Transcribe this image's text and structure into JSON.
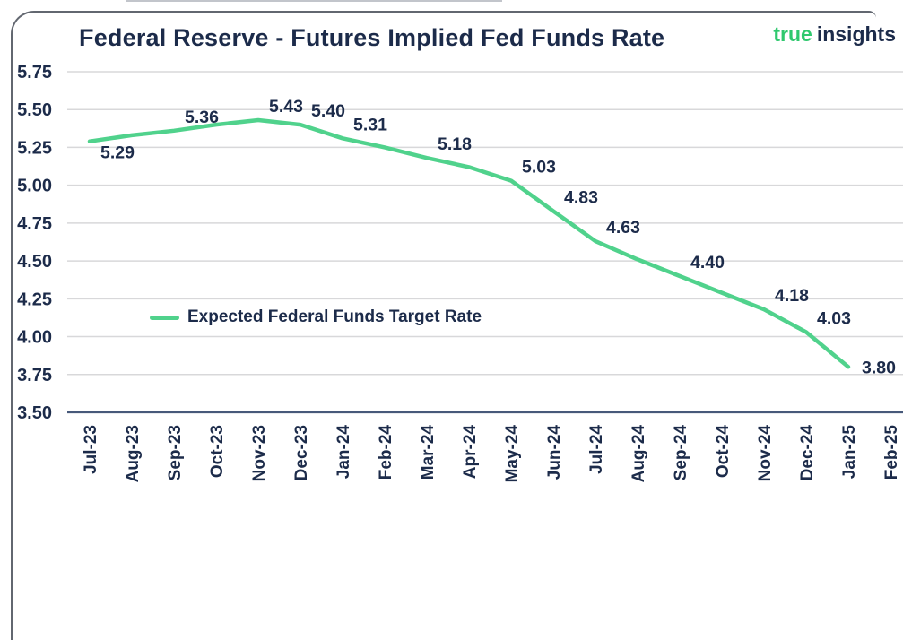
{
  "brand": {
    "green_word": "true",
    "dark_word": "insights"
  },
  "chart_data": {
    "type": "line",
    "title": "Federal Reserve - Futures Implied Fed Funds Rate",
    "xlabel": "",
    "ylabel": "",
    "x": [
      "Jul-23",
      "Aug-23",
      "Sep-23",
      "Oct-23",
      "Nov-23",
      "Dec-23",
      "Jan-24",
      "Feb-24",
      "Mar-24",
      "Apr-24",
      "May-24",
      "Jun-24",
      "Jul-24",
      "Aug-24",
      "Sep-24",
      "Oct-24",
      "Nov-24",
      "Dec-24",
      "Jan-25",
      "Feb-25"
    ],
    "series": [
      {
        "name": "Expected Federal Funds Target Rate",
        "values": [
          5.29,
          5.33,
          5.36,
          5.4,
          5.43,
          5.4,
          5.31,
          5.25,
          5.18,
          5.12,
          5.03,
          4.83,
          4.63,
          4.51,
          4.4,
          4.29,
          4.18,
          4.03,
          3.8,
          null
        ],
        "data_labels": [
          "5.29",
          null,
          "5.36",
          null,
          "5.43",
          "5.40",
          "5.31",
          null,
          "5.18",
          null,
          "5.03",
          "4.83",
          "4.63",
          null,
          "4.40",
          null,
          "4.18",
          "4.03",
          "3.80",
          null
        ]
      }
    ],
    "ylim": [
      3.5,
      5.75
    ],
    "ytick_step": 0.25,
    "yticks": [
      "5.75",
      "5.50",
      "5.25",
      "5.00",
      "4.75",
      "4.50",
      "4.25",
      "4.00",
      "3.75",
      "3.50"
    ],
    "grid": "horizontal",
    "legend_position": "inside-left-middle",
    "colors": {
      "line": "#50d28c",
      "logo_green": "#2fc86e",
      "text_navy": "#1c2b4a",
      "gridline": "#d8d8da",
      "axis_line": "#47597a",
      "frame_border": "#626770"
    }
  }
}
